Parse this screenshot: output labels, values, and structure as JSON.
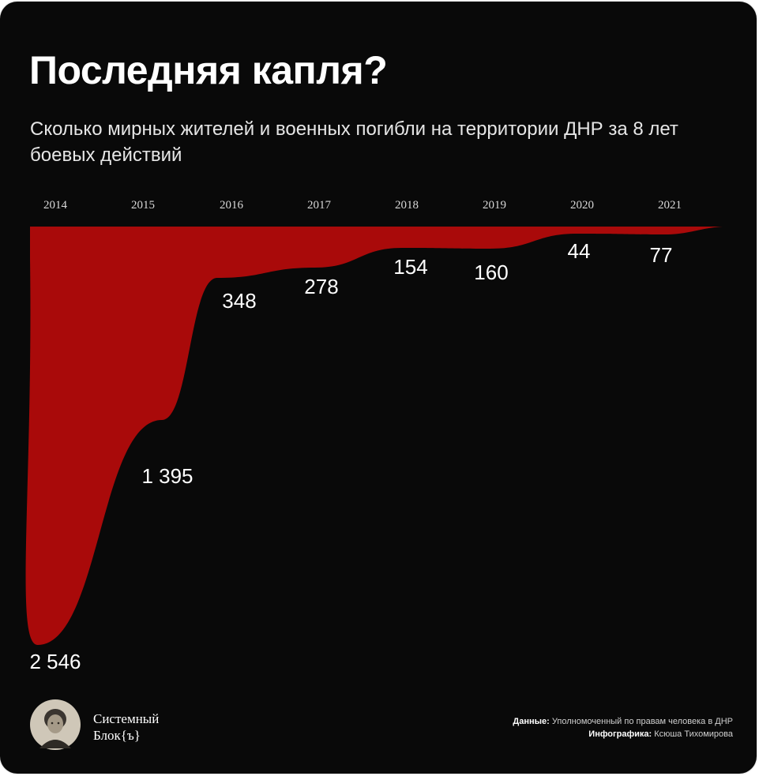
{
  "title": "Последняя капля?",
  "subtitle": "Сколько мирных жителей и военных погибли на территории ДНР за 8 лет боевых действий",
  "colors": {
    "background": "#090909",
    "area": "#a90a0a",
    "text": "#ffffff"
  },
  "chart_data": {
    "type": "area",
    "title": "Последняя капля?",
    "subtitle": "Сколько мирных жителей и военных погибли на территории ДНР за 8 лет боевых действий",
    "categories": [
      "2014",
      "2015",
      "2016",
      "2017",
      "2018",
      "2019",
      "2020",
      "2021"
    ],
    "values": [
      2546,
      1395,
      348,
      278,
      154,
      160,
      44,
      77
    ],
    "value_labels": [
      "2 546",
      "1 395",
      "348",
      "278",
      "154",
      "160",
      "44",
      "77"
    ],
    "orientation": "inverted (values grow downward from top baseline)",
    "grid": false,
    "legend": "none"
  },
  "brand": {
    "line1": "Системный",
    "line2": "Блок{ъ}",
    "logo_icon": "portrait-avatar"
  },
  "credits": {
    "data_label": "Данные:",
    "data_value": "Уполномоченный по правам человека в ДНР",
    "author_label": "Инфографика:",
    "author_value": "Ксюша Тихомирова"
  }
}
